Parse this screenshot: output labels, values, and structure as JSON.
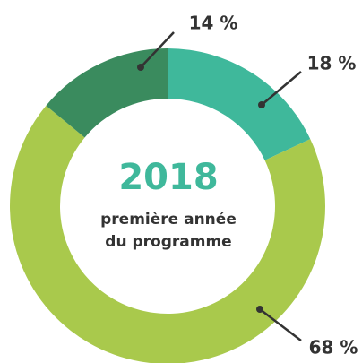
{
  "chart_data": {
    "type": "donut",
    "title": "2018",
    "subtitle": [
      "première année",
      "du programme"
    ],
    "values": [
      18,
      68,
      14
    ],
    "value_labels": [
      "18 %",
      "68 %",
      "14 %"
    ],
    "colors": [
      "#3fb89b",
      "#a9c94c",
      "#3a8b5e"
    ],
    "title_color": "#3fb89b"
  }
}
